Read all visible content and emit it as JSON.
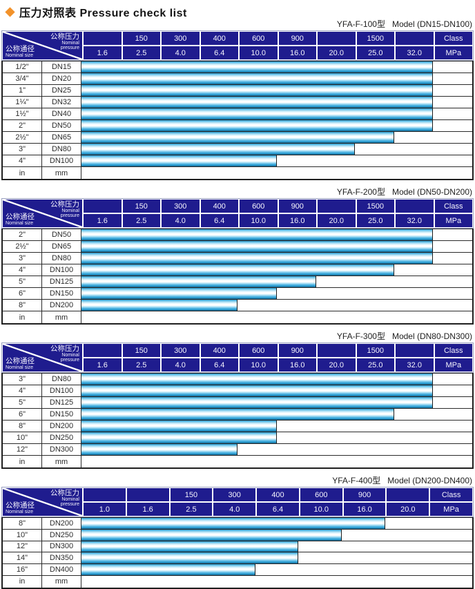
{
  "page_title": {
    "zh": "压力对照表",
    "en": "Pressure check list"
  },
  "corner": {
    "pressure_zh": "公称压力",
    "pressure_en_line1": "Nominal",
    "pressure_en_line2": "pressure",
    "size_zh": "公称通径",
    "size_en": "Nominal size"
  },
  "colors": {
    "header_navy": "#1f1c8e",
    "bar_cyan": "#29a5dc",
    "bar_highlight": "#ffffff",
    "diamond_orange": "#f2922a",
    "border_dark": "#1f1f1f"
  },
  "tables": [
    {
      "model": "YFA-F-100型",
      "range": "Model (DN15-DN100)",
      "class_row": [
        "",
        "150",
        "300",
        "400",
        "600",
        "900",
        "",
        "1500",
        "",
        "Class"
      ],
      "mpa_row": [
        "1.6",
        "2.5",
        "4.0",
        "6.4",
        "10.0",
        "16.0",
        "20.0",
        "25.0",
        "32.0",
        "MPa"
      ],
      "unit_row": {
        "in": "in",
        "mm": "mm"
      },
      "rows": [
        {
          "inch": "1/2\"",
          "dn": "DN15",
          "bar_cols": 9,
          "max_mpa": "32.0"
        },
        {
          "inch": "3/4\"",
          "dn": "DN20",
          "bar_cols": 9,
          "max_mpa": "32.0"
        },
        {
          "inch": "1\"",
          "dn": "DN25",
          "bar_cols": 9,
          "max_mpa": "32.0"
        },
        {
          "inch": "1¼\"",
          "dn": "DN32",
          "bar_cols": 9,
          "max_mpa": "32.0"
        },
        {
          "inch": "1½\"",
          "dn": "DN40",
          "bar_cols": 9,
          "max_mpa": "32.0"
        },
        {
          "inch": "2\"",
          "dn": "DN50",
          "bar_cols": 9,
          "max_mpa": "32.0"
        },
        {
          "inch": "2½\"",
          "dn": "DN65",
          "bar_cols": 8,
          "max_mpa": "25.0"
        },
        {
          "inch": "3\"",
          "dn": "DN80",
          "bar_cols": 7,
          "max_mpa": "20.0"
        },
        {
          "inch": "4\"",
          "dn": "DN100",
          "bar_cols": 5,
          "max_mpa": "10.0"
        }
      ]
    },
    {
      "model": "YFA-F-200型",
      "range": "Model (DN50-DN200)",
      "class_row": [
        "",
        "150",
        "300",
        "400",
        "600",
        "900",
        "",
        "1500",
        "",
        "Class"
      ],
      "mpa_row": [
        "1.6",
        "2.5",
        "4.0",
        "6.4",
        "10.0",
        "16.0",
        "20.0",
        "25.0",
        "32.0",
        "MPa"
      ],
      "unit_row": {
        "in": "in",
        "mm": "mm"
      },
      "rows": [
        {
          "inch": "2\"",
          "dn": "DN50",
          "bar_cols": 9,
          "max_mpa": "32.0"
        },
        {
          "inch": "2½\"",
          "dn": "DN65",
          "bar_cols": 9,
          "max_mpa": "32.0"
        },
        {
          "inch": "3\"",
          "dn": "DN80",
          "bar_cols": 9,
          "max_mpa": "32.0"
        },
        {
          "inch": "4\"",
          "dn": "DN100",
          "bar_cols": 8,
          "max_mpa": "25.0"
        },
        {
          "inch": "5\"",
          "dn": "DN125",
          "bar_cols": 6,
          "max_mpa": "16.0"
        },
        {
          "inch": "6\"",
          "dn": "DN150",
          "bar_cols": 5,
          "max_mpa": "10.0"
        },
        {
          "inch": "8\"",
          "dn": "DN200",
          "bar_cols": 4,
          "max_mpa": "6.4"
        }
      ]
    },
    {
      "model": "YFA-F-300型",
      "range": "Model (DN80-DN300)",
      "class_row": [
        "",
        "150",
        "300",
        "400",
        "600",
        "900",
        "",
        "1500",
        "",
        "Class"
      ],
      "mpa_row": [
        "1.6",
        "2.5",
        "4.0",
        "6.4",
        "10.0",
        "16.0",
        "20.0",
        "25.0",
        "32.0",
        "MPa"
      ],
      "unit_row": {
        "in": "in",
        "mm": "mm"
      },
      "rows": [
        {
          "inch": "3\"",
          "dn": "DN80",
          "bar_cols": 9,
          "max_mpa": "32.0"
        },
        {
          "inch": "4\"",
          "dn": "DN100",
          "bar_cols": 9,
          "max_mpa": "32.0"
        },
        {
          "inch": "5\"",
          "dn": "DN125",
          "bar_cols": 9,
          "max_mpa": "32.0"
        },
        {
          "inch": "6\"",
          "dn": "DN150",
          "bar_cols": 8,
          "max_mpa": "25.0"
        },
        {
          "inch": "8\"",
          "dn": "DN200",
          "bar_cols": 5,
          "max_mpa": "10.0"
        },
        {
          "inch": "10\"",
          "dn": "DN250",
          "bar_cols": 5,
          "max_mpa": "10.0"
        },
        {
          "inch": "12\"",
          "dn": "DN300",
          "bar_cols": 4,
          "max_mpa": "6.4"
        }
      ]
    },
    {
      "model": "YFA-F-400型",
      "range": "Model (DN200-DN400)",
      "class_row": [
        "",
        "",
        "150",
        "300",
        "400",
        "600",
        "900",
        "",
        "Class"
      ],
      "mpa_row": [
        "1.0",
        "1.6",
        "2.5",
        "4.0",
        "6.4",
        "10.0",
        "16.0",
        "20.0",
        "MPa"
      ],
      "unit_row": {
        "in": "in",
        "mm": "mm"
      },
      "rows": [
        {
          "inch": "8\"",
          "dn": "DN200",
          "bar_cols": 7,
          "max_mpa": "16.0"
        },
        {
          "inch": "10\"",
          "dn": "DN250",
          "bar_cols": 6,
          "max_mpa": "10.0"
        },
        {
          "inch": "12\"",
          "dn": "DN300",
          "bar_cols": 5,
          "max_mpa": "6.4"
        },
        {
          "inch": "14\"",
          "dn": "DN350",
          "bar_cols": 5,
          "max_mpa": "6.4"
        },
        {
          "inch": "16\"",
          "dn": "DN400",
          "bar_cols": 4,
          "max_mpa": "4.0"
        }
      ]
    }
  ]
}
